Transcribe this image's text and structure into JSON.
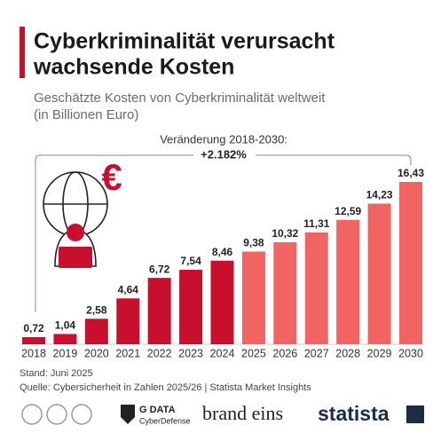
{
  "chart_data": {
    "type": "bar",
    "title": [
      "Cyberkriminalität verursacht",
      "wachsende Kosten"
    ],
    "subtitle": [
      "Geschätzte Kosten von Cyberkriminalität weltweit",
      "(in Billionen Euro)"
    ],
    "annotation": [
      "Veränderung 2018-2030:",
      "+2.182%"
    ],
    "categories": [
      "2018",
      "2019",
      "2020",
      "2021",
      "2022",
      "2023",
      "2024",
      "2025",
      "2026",
      "2027",
      "2028",
      "2029",
      "2030"
    ],
    "values": [
      0.72,
      1.04,
      2.58,
      4.64,
      6.72,
      7.54,
      8.46,
      9.38,
      10.32,
      11.31,
      12.59,
      14.23,
      16.43
    ],
    "value_labels": [
      "0,72",
      "1,04",
      "2,58",
      "4,64",
      "6,72",
      "7,54",
      "8,46",
      "9,38",
      "10,32",
      "11,31",
      "12,59",
      "14,23",
      "16,43"
    ],
    "colors": [
      "#c8102e",
      "#c8102e",
      "#c8102e",
      "#c8102e",
      "#c8102e",
      "#c8102e",
      "#c8102e",
      "#f26363",
      "#f26363",
      "#f26363",
      "#f26363",
      "#f26363",
      "#f26363"
    ],
    "notes": [
      "Stand: Juni 2025",
      "Quelle: Cybersicherheit in Zahlen 2025/26 | Statista Market Insights"
    ],
    "logos": [
      "G DATA",
      "CyberDefense",
      "brand eins",
      "statista"
    ]
  }
}
